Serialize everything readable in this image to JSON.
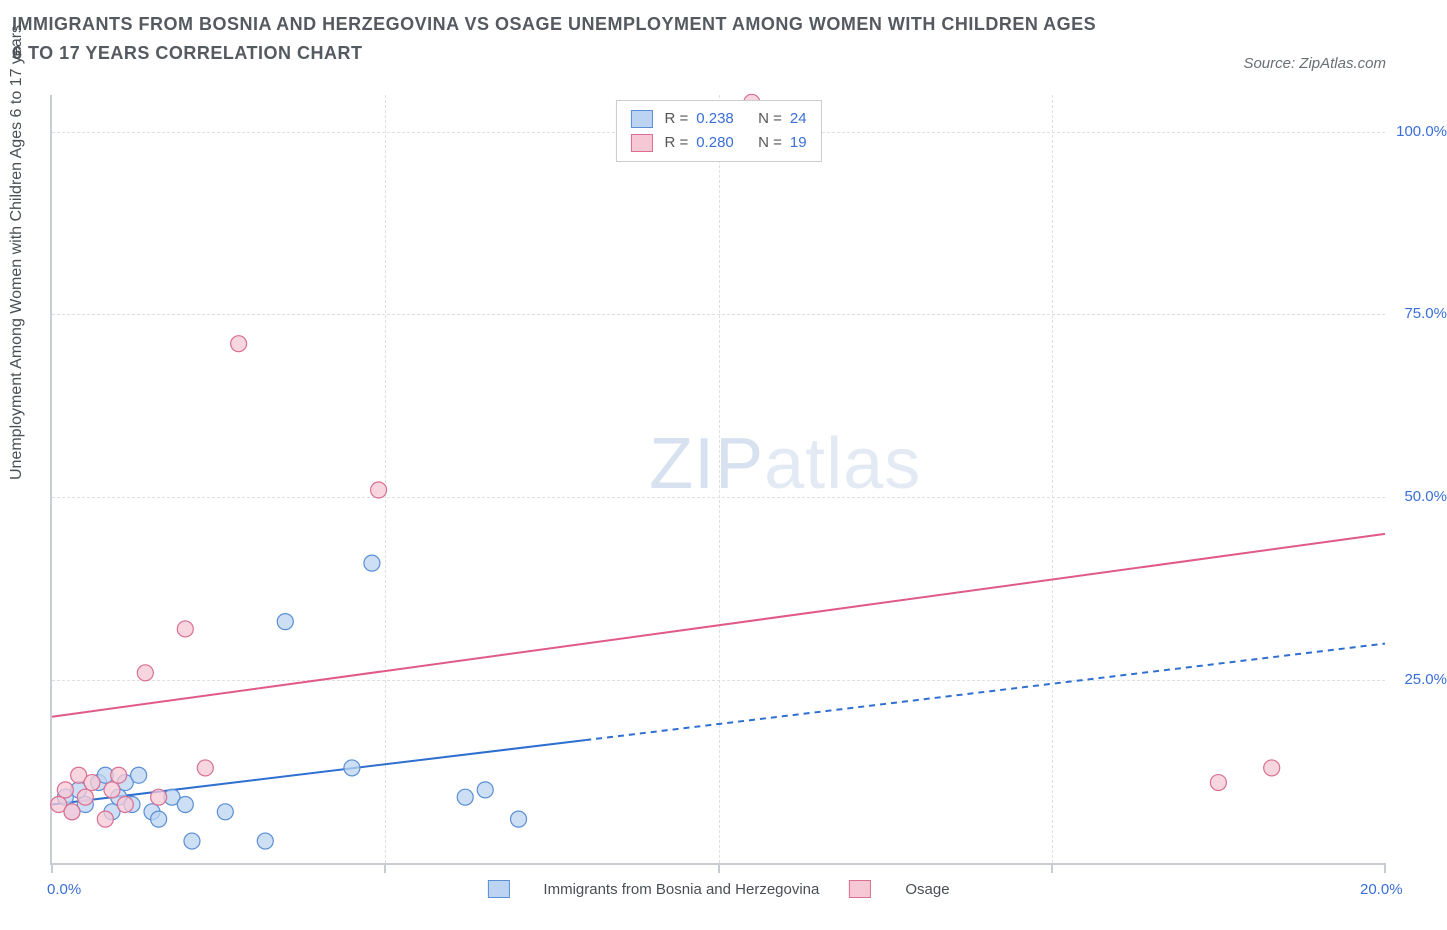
{
  "title": "IMMIGRANTS FROM BOSNIA AND HERZEGOVINA VS OSAGE UNEMPLOYMENT AMONG WOMEN WITH CHILDREN AGES 6 TO 17 YEARS CORRELATION CHART",
  "source_label": "Source: ZipAtlas.com",
  "watermark_a": "ZIP",
  "watermark_b": "atlas",
  "y_axis_title": "Unemployment Among Women with Children Ages 6 to 17 years",
  "chart": {
    "type": "scatter",
    "background_color": "#ffffff",
    "grid_color": "#dcdfe3",
    "border_color": "#c9ccd0",
    "xlim": [
      0,
      20
    ],
    "ylim": [
      0,
      105
    ],
    "x_ticks": [
      0,
      5,
      10,
      15,
      20
    ],
    "x_tick_labels": [
      "0.0%",
      "",
      "",
      "",
      "20.0%"
    ],
    "y_ticks": [
      25,
      50,
      75,
      100
    ],
    "y_tick_labels": [
      "25.0%",
      "50.0%",
      "75.0%",
      "100.0%"
    ],
    "marker_radius": 8,
    "marker_stroke_width": 1.2,
    "line_width": 2,
    "series": [
      {
        "name": "Immigrants from Bosnia and Herzegovina",
        "fill": "#bcd4f2",
        "stroke": "#5a8fd6",
        "line_color": "#2f6fd0",
        "r_value": "0.238",
        "n_value": "24",
        "trend": {
          "x1": 0,
          "y1": 8,
          "x2": 20,
          "y2": 30,
          "solid_until_x": 8
        },
        "points": [
          {
            "x": 0.2,
            "y": 9
          },
          {
            "x": 0.3,
            "y": 7
          },
          {
            "x": 0.4,
            "y": 10
          },
          {
            "x": 0.5,
            "y": 8
          },
          {
            "x": 0.7,
            "y": 11
          },
          {
            "x": 0.8,
            "y": 12
          },
          {
            "x": 0.9,
            "y": 7
          },
          {
            "x": 1.0,
            "y": 9
          },
          {
            "x": 1.1,
            "y": 11
          },
          {
            "x": 1.2,
            "y": 8
          },
          {
            "x": 1.3,
            "y": 12
          },
          {
            "x": 1.5,
            "y": 7
          },
          {
            "x": 1.6,
            "y": 6
          },
          {
            "x": 1.8,
            "y": 9
          },
          {
            "x": 2.0,
            "y": 8
          },
          {
            "x": 2.1,
            "y": 3
          },
          {
            "x": 2.6,
            "y": 7
          },
          {
            "x": 3.2,
            "y": 3
          },
          {
            "x": 3.5,
            "y": 33
          },
          {
            "x": 4.5,
            "y": 13
          },
          {
            "x": 4.8,
            "y": 41
          },
          {
            "x": 6.2,
            "y": 9
          },
          {
            "x": 6.5,
            "y": 10
          },
          {
            "x": 7.0,
            "y": 6
          }
        ]
      },
      {
        "name": "Osage",
        "fill": "#f6c8d6",
        "stroke": "#d96f92",
        "line_color": "#e05a85",
        "r_value": "0.280",
        "n_value": "19",
        "trend": {
          "x1": 0,
          "y1": 20,
          "x2": 20,
          "y2": 45,
          "solid_until_x": 20
        },
        "points": [
          {
            "x": 0.1,
            "y": 8
          },
          {
            "x": 0.2,
            "y": 10
          },
          {
            "x": 0.3,
            "y": 7
          },
          {
            "x": 0.4,
            "y": 12
          },
          {
            "x": 0.5,
            "y": 9
          },
          {
            "x": 0.6,
            "y": 11
          },
          {
            "x": 0.8,
            "y": 6
          },
          {
            "x": 0.9,
            "y": 10
          },
          {
            "x": 1.0,
            "y": 12
          },
          {
            "x": 1.1,
            "y": 8
          },
          {
            "x": 1.4,
            "y": 26
          },
          {
            "x": 1.6,
            "y": 9
          },
          {
            "x": 2.0,
            "y": 32
          },
          {
            "x": 2.3,
            "y": 13
          },
          {
            "x": 2.8,
            "y": 71
          },
          {
            "x": 4.9,
            "y": 51
          },
          {
            "x": 10.5,
            "y": 104
          },
          {
            "x": 17.5,
            "y": 11
          },
          {
            "x": 18.3,
            "y": 13
          }
        ]
      }
    ]
  },
  "legend_top": {
    "r_label": "R =",
    "n_label": "N ="
  },
  "bottom_legend": {
    "series1_label": "Immigrants from Bosnia and Herzegovina",
    "series2_label": "Osage"
  }
}
